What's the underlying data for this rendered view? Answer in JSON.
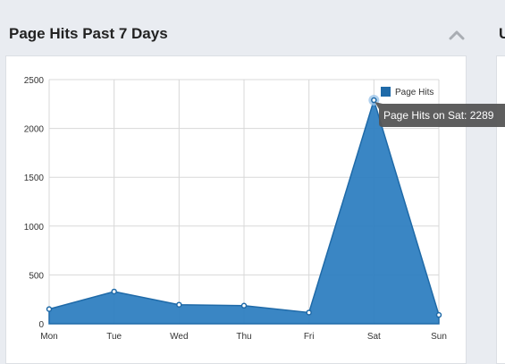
{
  "widget": {
    "title": "Page Hits Past 7 Days",
    "next_widget_title_partial": "U"
  },
  "colors": {
    "series_fill": "#2f7fc1",
    "series_stroke": "#1f6aa8",
    "grid": "#d8d8d8",
    "tooltip_bg": "#555555"
  },
  "icons": {
    "collapse": "chevron-up-icon"
  },
  "tooltip": {
    "text": "Page Hits on Sat: 2289",
    "category": "Sat"
  },
  "chart_data": {
    "type": "area",
    "categories": [
      "Mon",
      "Tue",
      "Wed",
      "Thu",
      "Fri",
      "Sat",
      "Sun"
    ],
    "series": [
      {
        "name": "Page Hits",
        "values": [
          150,
          330,
          195,
          185,
          115,
          2289,
          90
        ]
      }
    ],
    "y_ticks": [
      0,
      500,
      1000,
      1500,
      2000,
      2500
    ],
    "ylim": [
      0,
      2500
    ],
    "grid": true,
    "legend_position": "top-right"
  }
}
